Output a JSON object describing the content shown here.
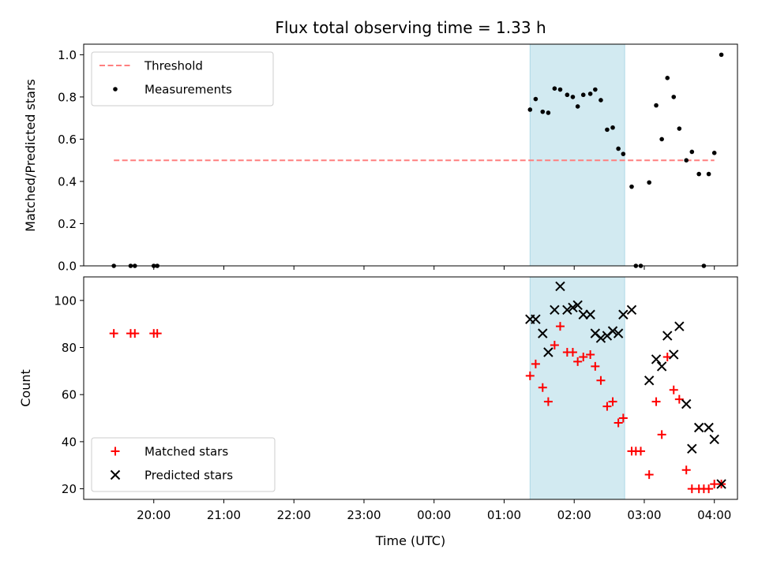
{
  "chart_data": {
    "title": "Flux total observing time = 1.33 h",
    "xlabel": "Time (UTC)",
    "x_tick_labels": [
      "20:00",
      "21:00",
      "22:00",
      "23:00",
      "00:00",
      "01:00",
      "02:00",
      "03:00",
      "04:00"
    ],
    "x_tick_hours": [
      20,
      21,
      22,
      23,
      24,
      25,
      26,
      27,
      28
    ],
    "xlim_hours": [
      19.0,
      28.33
    ],
    "shaded_span_hours": [
      25.37,
      26.72
    ],
    "shaded_color": "#add8e6",
    "panels": [
      {
        "type": "scatter",
        "ylabel": "Matched/Predicted stars",
        "ylim": [
          0,
          1.05
        ],
        "yticks": [
          0.0,
          0.2,
          0.4,
          0.6,
          0.8,
          1.0
        ],
        "ytick_labels": [
          "0.0",
          "0.2",
          "0.4",
          "0.6",
          "0.8",
          "1.0"
        ],
        "legend_position": "upper-left",
        "threshold": {
          "name": "Threshold",
          "value": 0.5,
          "x_range_hours": [
            19.43,
            28.0
          ],
          "color": "#ff7f7f",
          "style": "dashed"
        },
        "series": [
          {
            "name": "Measurements",
            "marker": "dot",
            "color": "#000000",
            "points": [
              [
                19.43,
                0.0
              ],
              [
                19.67,
                0.0
              ],
              [
                19.73,
                0.0
              ],
              [
                20.0,
                0.0
              ],
              [
                20.05,
                0.0
              ],
              [
                25.37,
                0.74
              ],
              [
                25.45,
                0.79
              ],
              [
                25.55,
                0.73
              ],
              [
                25.63,
                0.725
              ],
              [
                25.72,
                0.84
              ],
              [
                25.8,
                0.835
              ],
              [
                25.9,
                0.81
              ],
              [
                25.98,
                0.8
              ],
              [
                26.05,
                0.755
              ],
              [
                26.13,
                0.81
              ],
              [
                26.23,
                0.815
              ],
              [
                26.3,
                0.835
              ],
              [
                26.38,
                0.785
              ],
              [
                26.47,
                0.645
              ],
              [
                26.55,
                0.655
              ],
              [
                26.63,
                0.555
              ],
              [
                26.7,
                0.53
              ],
              [
                26.82,
                0.375
              ],
              [
                26.88,
                0.0
              ],
              [
                26.95,
                0.0
              ],
              [
                27.07,
                0.395
              ],
              [
                27.17,
                0.76
              ],
              [
                27.25,
                0.6
              ],
              [
                27.33,
                0.89
              ],
              [
                27.42,
                0.8
              ],
              [
                27.5,
                0.65
              ],
              [
                27.6,
                0.5
              ],
              [
                27.68,
                0.54
              ],
              [
                27.78,
                0.435
              ],
              [
                27.85,
                0.0
              ],
              [
                27.92,
                0.435
              ],
              [
                28.0,
                0.535
              ],
              [
                28.1,
                1.0
              ]
            ]
          }
        ]
      },
      {
        "type": "scatter",
        "ylabel": "Count",
        "ylim": [
          15.5,
          110
        ],
        "yticks": [
          20,
          40,
          60,
          80,
          100
        ],
        "ytick_labels": [
          "20",
          "40",
          "60",
          "80",
          "100"
        ],
        "legend_position": "lower-left",
        "series": [
          {
            "name": "Matched stars",
            "marker": "plus",
            "color": "#ff0000",
            "points": [
              [
                19.43,
                86
              ],
              [
                19.67,
                86
              ],
              [
                19.73,
                86
              ],
              [
                20.0,
                86
              ],
              [
                20.05,
                86
              ],
              [
                25.37,
                68
              ],
              [
                25.45,
                73
              ],
              [
                25.55,
                63
              ],
              [
                25.63,
                57
              ],
              [
                25.72,
                81
              ],
              [
                25.8,
                89
              ],
              [
                25.9,
                78
              ],
              [
                25.98,
                78
              ],
              [
                26.05,
                74
              ],
              [
                26.13,
                76
              ],
              [
                26.23,
                77
              ],
              [
                26.3,
                72
              ],
              [
                26.38,
                66
              ],
              [
                26.47,
                55
              ],
              [
                26.55,
                57
              ],
              [
                26.63,
                48
              ],
              [
                26.7,
                50
              ],
              [
                26.82,
                36
              ],
              [
                26.88,
                36
              ],
              [
                26.95,
                36
              ],
              [
                27.07,
                26
              ],
              [
                27.17,
                57
              ],
              [
                27.25,
                43
              ],
              [
                27.33,
                76
              ],
              [
                27.42,
                62
              ],
              [
                27.5,
                58
              ],
              [
                27.6,
                28
              ],
              [
                27.68,
                20
              ],
              [
                27.78,
                20
              ],
              [
                27.85,
                20
              ],
              [
                27.92,
                20
              ],
              [
                28.0,
                22
              ],
              [
                28.1,
                22
              ]
            ]
          },
          {
            "name": "Predicted stars",
            "marker": "cross",
            "color": "#000000",
            "points": [
              [
                25.37,
                92
              ],
              [
                25.45,
                92
              ],
              [
                25.55,
                86
              ],
              [
                25.63,
                78
              ],
              [
                25.72,
                96
              ],
              [
                25.8,
                106
              ],
              [
                25.9,
                96
              ],
              [
                25.98,
                97
              ],
              [
                26.05,
                98
              ],
              [
                26.13,
                94
              ],
              [
                26.23,
                94
              ],
              [
                26.3,
                86
              ],
              [
                26.38,
                84
              ],
              [
                26.47,
                85
              ],
              [
                26.55,
                87
              ],
              [
                26.63,
                86
              ],
              [
                26.7,
                94
              ],
              [
                26.82,
                96
              ],
              [
                27.07,
                66
              ],
              [
                27.17,
                75
              ],
              [
                27.25,
                72
              ],
              [
                27.33,
                85
              ],
              [
                27.42,
                77
              ],
              [
                27.5,
                89
              ],
              [
                27.6,
                56
              ],
              [
                27.68,
                37
              ],
              [
                27.78,
                46
              ],
              [
                27.92,
                46
              ],
              [
                28.0,
                41
              ],
              [
                28.1,
                22
              ]
            ]
          }
        ]
      }
    ]
  }
}
